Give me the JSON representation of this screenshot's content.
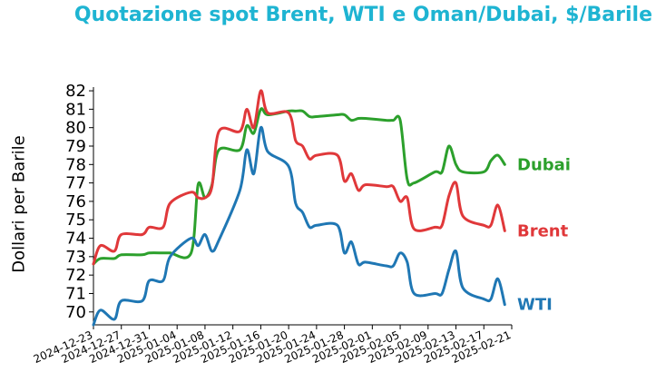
{
  "chart_data": {
    "type": "line",
    "title": "Quotazione spot Brent, WTI e Oman/Dubai, $/Barile",
    "xlabel": "",
    "ylabel": "Dollari per Barile",
    "ylim": [
      69.3,
      82.2
    ],
    "yticks": [
      70,
      71,
      72,
      73,
      74,
      75,
      76,
      77,
      78,
      79,
      80,
      81,
      82
    ],
    "xlim": [
      "2024-12-23",
      "2025-02-21"
    ],
    "xticks": [
      "2024-12-23",
      "2024-12-27",
      "2024-12-31",
      "2025-01-04",
      "2025-01-08",
      "2025-01-12",
      "2025-01-16",
      "2025-01-20",
      "2025-01-24",
      "2025-01-28",
      "2025-02-01",
      "2025-02-05",
      "2025-02-09",
      "2025-02-13",
      "2025-02-17",
      "2025-02-21"
    ],
    "grid": false,
    "legend": "inline-right",
    "series": [
      {
        "name": "Dubai",
        "color": "#2ca02c",
        "x": [
          "2024-12-23",
          "2024-12-24",
          "2024-12-26",
          "2024-12-27",
          "2024-12-30",
          "2024-12-31",
          "2025-01-02",
          "2025-01-03",
          "2025-01-06",
          "2025-01-07",
          "2025-01-08",
          "2025-01-09",
          "2025-01-10",
          "2025-01-13",
          "2025-01-14",
          "2025-01-15",
          "2025-01-16",
          "2025-01-17",
          "2025-01-20",
          "2025-01-21",
          "2025-01-22",
          "2025-01-23",
          "2025-01-24",
          "2025-01-27",
          "2025-01-28",
          "2025-01-29",
          "2025-01-30",
          "2025-01-31",
          "2025-02-03",
          "2025-02-04",
          "2025-02-05",
          "2025-02-06",
          "2025-02-07",
          "2025-02-10",
          "2025-02-11",
          "2025-02-12",
          "2025-02-13",
          "2025-02-14",
          "2025-02-17",
          "2025-02-18",
          "2025-02-19",
          "2025-02-20"
        ],
        "values": [
          72.6,
          72.9,
          72.9,
          73.1,
          73.1,
          73.2,
          73.2,
          73.2,
          73.2,
          76.9,
          76.2,
          76.9,
          78.8,
          78.8,
          80.1,
          79.7,
          81.0,
          80.7,
          80.9,
          80.9,
          80.9,
          80.6,
          80.6,
          80.7,
          80.7,
          80.4,
          80.5,
          80.5,
          80.4,
          80.4,
          80.4,
          77.2,
          77.0,
          77.6,
          77.6,
          79.0,
          78.0,
          77.6,
          77.6,
          78.2,
          78.5,
          78.0
        ]
      },
      {
        "name": "Brent",
        "color": "#e0383a",
        "x": [
          "2024-12-23",
          "2024-12-24",
          "2024-12-26",
          "2024-12-27",
          "2024-12-30",
          "2024-12-31",
          "2025-01-02",
          "2025-01-03",
          "2025-01-06",
          "2025-01-07",
          "2025-01-08",
          "2025-01-09",
          "2025-01-10",
          "2025-01-13",
          "2025-01-14",
          "2025-01-15",
          "2025-01-16",
          "2025-01-17",
          "2025-01-20",
          "2025-01-21",
          "2025-01-22",
          "2025-01-23",
          "2025-01-24",
          "2025-01-27",
          "2025-01-28",
          "2025-01-29",
          "2025-01-30",
          "2025-01-31",
          "2025-02-03",
          "2025-02-04",
          "2025-02-05",
          "2025-02-06",
          "2025-02-07",
          "2025-02-10",
          "2025-02-11",
          "2025-02-12",
          "2025-02-13",
          "2025-02-14",
          "2025-02-17",
          "2025-02-18",
          "2025-02-19",
          "2025-02-20"
        ],
        "values": [
          72.6,
          73.6,
          73.3,
          74.2,
          74.2,
          74.6,
          74.6,
          75.9,
          76.5,
          76.2,
          76.2,
          76.8,
          79.8,
          79.8,
          81.0,
          80.0,
          82.0,
          80.8,
          80.8,
          79.3,
          79.0,
          78.3,
          78.5,
          78.5,
          77.1,
          77.5,
          76.6,
          76.9,
          76.8,
          76.8,
          76.0,
          76.2,
          74.5,
          74.6,
          74.7,
          76.3,
          77.0,
          75.2,
          74.7,
          74.7,
          75.8,
          74.4
        ]
      },
      {
        "name": "WTI",
        "color": "#1f77b4",
        "x": [
          "2024-12-23",
          "2024-12-24",
          "2024-12-26",
          "2024-12-27",
          "2024-12-30",
          "2024-12-31",
          "2025-01-02",
          "2025-01-03",
          "2025-01-06",
          "2025-01-07",
          "2025-01-08",
          "2025-01-09",
          "2025-01-10",
          "2025-01-13",
          "2025-01-14",
          "2025-01-15",
          "2025-01-16",
          "2025-01-17",
          "2025-01-20",
          "2025-01-21",
          "2025-01-22",
          "2025-01-23",
          "2025-01-24",
          "2025-01-27",
          "2025-01-28",
          "2025-01-29",
          "2025-01-30",
          "2025-01-31",
          "2025-02-03",
          "2025-02-04",
          "2025-02-05",
          "2025-02-06",
          "2025-02-07",
          "2025-02-10",
          "2025-02-11",
          "2025-02-12",
          "2025-02-13",
          "2025-02-14",
          "2025-02-17",
          "2025-02-18",
          "2025-02-19",
          "2025-02-20"
        ],
        "values": [
          69.3,
          70.1,
          69.6,
          70.6,
          70.6,
          71.7,
          71.7,
          73.0,
          74.0,
          73.6,
          74.2,
          73.3,
          73.9,
          76.6,
          78.8,
          77.5,
          80.0,
          78.7,
          77.9,
          75.9,
          75.4,
          74.6,
          74.7,
          74.7,
          73.2,
          73.8,
          72.6,
          72.7,
          72.5,
          72.5,
          73.2,
          72.7,
          71.0,
          71.0,
          71.0,
          72.3,
          73.3,
          71.3,
          70.7,
          70.7,
          71.8,
          70.4
        ]
      }
    ]
  }
}
